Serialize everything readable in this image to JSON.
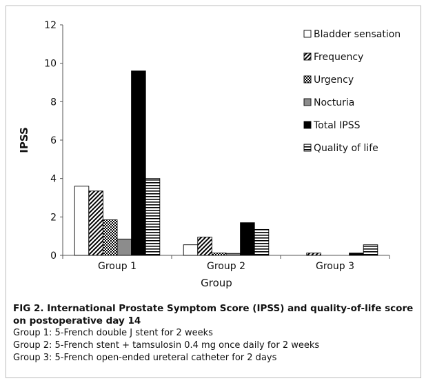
{
  "chart_data": {
    "type": "bar",
    "ylabel": "IPSS",
    "xlabel": "Group",
    "ylim": [
      0,
      12
    ],
    "yticks": [
      0,
      2,
      4,
      6,
      8,
      10,
      12
    ],
    "categories": [
      "Group 1",
      "Group 2",
      "Group 3"
    ],
    "legend_position": "top-right",
    "grid": false,
    "series": [
      {
        "name": "Bladder sensation",
        "pattern": "white",
        "values": [
          3.6,
          0.55,
          0.0
        ]
      },
      {
        "name": "Frequency",
        "pattern": "diagonal",
        "values": [
          3.35,
          0.95,
          0.12
        ]
      },
      {
        "name": "Urgency",
        "pattern": "checker",
        "values": [
          1.85,
          0.12,
          0.0
        ]
      },
      {
        "name": "Nocturia",
        "pattern": "gray",
        "values": [
          0.85,
          0.1,
          0.0
        ]
      },
      {
        "name": "Total IPSS",
        "pattern": "black",
        "values": [
          9.6,
          1.7,
          0.12
        ]
      },
      {
        "name": "Quality of life",
        "pattern": "horizontal",
        "values": [
          4.0,
          1.35,
          0.55
        ]
      }
    ]
  },
  "caption": {
    "title": "FIG 2.  International Prostate Symptom Score (IPSS) and quality-of-life score on postoperative day 14",
    "lines": [
      "Group 1: 5-French double J stent for 2 weeks",
      "Group 2: 5-French stent + tamsulosin 0.4 mg once daily for 2 weeks",
      "Group 3: 5-French open-ended ureteral catheter for 2 days"
    ]
  }
}
